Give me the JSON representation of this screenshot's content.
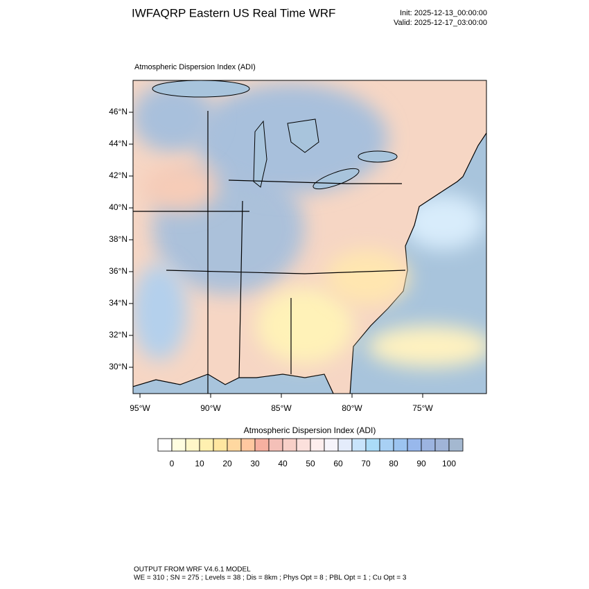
{
  "header": {
    "title": "IWFAQRP Eastern US Real Time WRF",
    "init": "Init: 2025-12-13_00:00:00",
    "valid": "Valid: 2025-12-17_03:00:00"
  },
  "map": {
    "title": "Atmospheric Dispersion Index   (ADI)",
    "lat_ticks": [
      {
        "value": 46,
        "label": "46°N"
      },
      {
        "value": 44,
        "label": "44°N"
      },
      {
        "value": 42,
        "label": "42°N"
      },
      {
        "value": 40,
        "label": "40°N"
      },
      {
        "value": 38,
        "label": "38°N"
      },
      {
        "value": 36,
        "label": "36°N"
      },
      {
        "value": 34,
        "label": "34°N"
      },
      {
        "value": 32,
        "label": "32°N"
      },
      {
        "value": 30,
        "label": "30°N"
      }
    ],
    "lon_ticks": [
      {
        "value": -95,
        "label": "95°W"
      },
      {
        "value": -90,
        "label": "90°W"
      },
      {
        "value": -85,
        "label": "85°W"
      },
      {
        "value": -80,
        "label": "80°W"
      },
      {
        "value": -75,
        "label": "75°W"
      }
    ]
  },
  "colorbar": {
    "title": "Atmospheric Dispersion Index  (ADI)",
    "levels": [
      0,
      10,
      20,
      30,
      40,
      50,
      60,
      70,
      80,
      90,
      100
    ],
    "colors": [
      "#ffffff",
      "#fffde0",
      "#fff7c8",
      "#fff0b0",
      "#ffe6a0",
      "#ffd8a0",
      "#ffc8a0",
      "#f7b0a0",
      "#f4c0b8",
      "#f8d0c8",
      "#fbe0dc",
      "#fdeeee",
      "#f6f4fb",
      "#e4ecfb",
      "#c8e4fb",
      "#aadcf8",
      "#a8d0f4",
      "#9cc4f0",
      "#98b8ec",
      "#9cb4e0",
      "#a0b4d8",
      "#a4b8d0"
    ]
  },
  "footer": {
    "line1": "OUTPUT FROM WRF V4.6.1 MODEL",
    "line2": "WE = 310 ; SN = 275 ; Levels = 38 ; Dis = 8km ; Phys Opt = 8 ; PBL Opt = 1 ; Cu Opt = 3"
  }
}
